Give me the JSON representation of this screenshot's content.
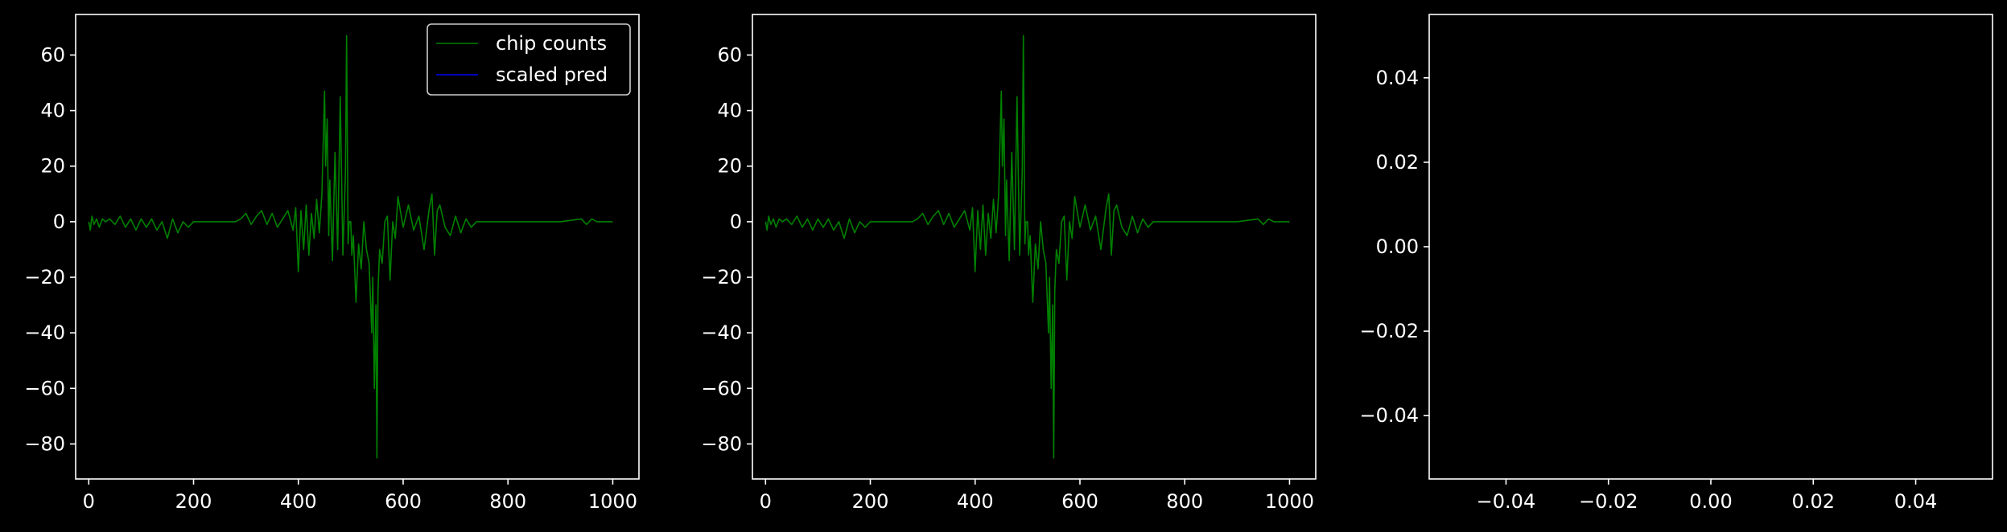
{
  "colors": {
    "background": "#000000",
    "axes": "#ffffff",
    "chip_counts": "#008000",
    "scaled_pred": "#0000ff"
  },
  "legend": {
    "entries": [
      "chip counts",
      "scaled pred"
    ],
    "placement": "upper-right of first panel"
  },
  "chart_data": [
    {
      "type": "line",
      "panel": 1,
      "xlim": [
        -25,
        1050
      ],
      "ylim": [
        -92.6,
        74.6
      ],
      "xticks": [
        0,
        200,
        400,
        600,
        800,
        1000
      ],
      "yticks": [
        -80,
        -60,
        -40,
        -20,
        0,
        20,
        40,
        60
      ],
      "xtick_labels": [
        "0",
        "200",
        "400",
        "600",
        "800",
        "1000"
      ],
      "ytick_labels": [
        "−80",
        "−60",
        "−40",
        "−20",
        "0",
        "20",
        "40",
        "60"
      ],
      "grid": false,
      "legend": true,
      "series": [
        {
          "name": "chip counts",
          "color": "#008000",
          "x": [
            0,
            3,
            6,
            10,
            15,
            20,
            26,
            32,
            40,
            50,
            60,
            70,
            80,
            90,
            100,
            110,
            120,
            130,
            140,
            150,
            160,
            170,
            180,
            190,
            200,
            280,
            290,
            300,
            310,
            320,
            330,
            340,
            350,
            360,
            370,
            380,
            390,
            395,
            400,
            405,
            410,
            415,
            420,
            425,
            430,
            435,
            440,
            445,
            450,
            452,
            455,
            458,
            460,
            465,
            470,
            475,
            480,
            485,
            490,
            492,
            495,
            497,
            500,
            502,
            505,
            510,
            515,
            520,
            525,
            530,
            535,
            540,
            542,
            545,
            548,
            550,
            552,
            555,
            560,
            565,
            570,
            575,
            580,
            585,
            590,
            600,
            610,
            620,
            630,
            640,
            650,
            655,
            660,
            665,
            670,
            680,
            690,
            700,
            710,
            720,
            730,
            740,
            760,
            800,
            850,
            900,
            940,
            950,
            960,
            970,
            980,
            1000
          ],
          "y": [
            0,
            -3,
            2,
            -1,
            1,
            -2,
            1,
            0,
            1,
            -1,
            2,
            -2,
            1,
            -3,
            1,
            -2,
            1,
            -3,
            0,
            -6,
            1,
            -4,
            0,
            -2,
            0,
            0,
            1,
            3,
            -1,
            2,
            4,
            -1,
            3,
            -2,
            1,
            4,
            -3,
            5,
            -18,
            4,
            -10,
            6,
            -12,
            3,
            -6,
            8,
            -4,
            10,
            47,
            20,
            37,
            -5,
            15,
            -14,
            25,
            -10,
            45,
            -12,
            18,
            67,
            -8,
            0,
            0,
            -12,
            -5,
            -29,
            -8,
            -17,
            0,
            -10,
            -15,
            -40,
            -20,
            -60,
            -30,
            -85,
            -25,
            -10,
            -15,
            0,
            2,
            -21,
            0,
            -6,
            9,
            -2,
            6,
            -3,
            2,
            -10,
            5,
            10,
            -12,
            4,
            6,
            -2,
            -5,
            2,
            -4,
            1,
            -2,
            0,
            0,
            0,
            0,
            0,
            1,
            -1,
            1,
            0,
            0,
            0
          ]
        },
        {
          "name": "scaled pred",
          "color": "#0000ff",
          "x": [],
          "y": []
        }
      ]
    },
    {
      "type": "line",
      "panel": 2,
      "xlim": [
        -25,
        1050
      ],
      "ylim": [
        -92.6,
        74.6
      ],
      "xticks": [
        0,
        200,
        400,
        600,
        800,
        1000
      ],
      "yticks": [
        -80,
        -60,
        -40,
        -20,
        0,
        20,
        40,
        60
      ],
      "xtick_labels": [
        "0",
        "200",
        "400",
        "600",
        "800",
        "1000"
      ],
      "ytick_labels": [
        "−80",
        "−60",
        "−40",
        "−20",
        "0",
        "20",
        "40",
        "60"
      ],
      "grid": false,
      "legend": false,
      "series": [
        {
          "color": "#008000",
          "x": [
            0,
            3,
            6,
            10,
            15,
            20,
            26,
            32,
            40,
            50,
            60,
            70,
            80,
            90,
            100,
            110,
            120,
            130,
            140,
            150,
            160,
            170,
            180,
            190,
            200,
            280,
            290,
            300,
            310,
            320,
            330,
            340,
            350,
            360,
            370,
            380,
            390,
            395,
            400,
            405,
            410,
            415,
            420,
            425,
            430,
            435,
            440,
            445,
            450,
            452,
            455,
            458,
            460,
            465,
            470,
            475,
            480,
            485,
            490,
            492,
            495,
            497,
            500,
            502,
            505,
            510,
            515,
            520,
            525,
            530,
            535,
            540,
            542,
            545,
            548,
            550,
            552,
            555,
            560,
            565,
            570,
            575,
            580,
            585,
            590,
            600,
            610,
            620,
            630,
            640,
            650,
            655,
            660,
            665,
            670,
            680,
            690,
            700,
            710,
            720,
            730,
            740,
            760,
            800,
            850,
            900,
            940,
            950,
            960,
            970,
            980,
            1000
          ],
          "y": [
            0,
            -3,
            2,
            -1,
            1,
            -2,
            1,
            0,
            1,
            -1,
            2,
            -2,
            1,
            -3,
            1,
            -2,
            1,
            -3,
            0,
            -6,
            1,
            -4,
            0,
            -2,
            0,
            0,
            1,
            3,
            -1,
            2,
            4,
            -1,
            3,
            -2,
            1,
            4,
            -3,
            5,
            -18,
            4,
            -10,
            6,
            -12,
            3,
            -6,
            8,
            -4,
            10,
            47,
            20,
            37,
            -5,
            15,
            -14,
            25,
            -10,
            45,
            -12,
            18,
            67,
            -8,
            0,
            0,
            -12,
            -5,
            -29,
            -8,
            -17,
            0,
            -10,
            -15,
            -40,
            -20,
            -60,
            -30,
            -85,
            -25,
            -10,
            -15,
            0,
            2,
            -21,
            0,
            -6,
            9,
            -2,
            6,
            -3,
            2,
            -10,
            5,
            10,
            -12,
            4,
            6,
            -2,
            -5,
            2,
            -4,
            1,
            -2,
            0,
            0,
            0,
            0,
            0,
            1,
            -1,
            1,
            0,
            0,
            0
          ]
        }
      ]
    },
    {
      "type": "line",
      "panel": 3,
      "xlim": [
        -0.055,
        0.055
      ],
      "ylim": [
        -0.055,
        0.055
      ],
      "xticks": [
        -0.04,
        -0.02,
        0,
        0.02,
        0.04
      ],
      "yticks": [
        -0.04,
        -0.02,
        0,
        0.02,
        0.04
      ],
      "xtick_labels": [
        "−0.04",
        "−0.02",
        "0.00",
        "0.02",
        "0.04"
      ],
      "ytick_labels": [
        "−0.04",
        "−0.02",
        "0.00",
        "0.02",
        "0.04"
      ],
      "grid": false,
      "legend": false,
      "series": []
    }
  ]
}
